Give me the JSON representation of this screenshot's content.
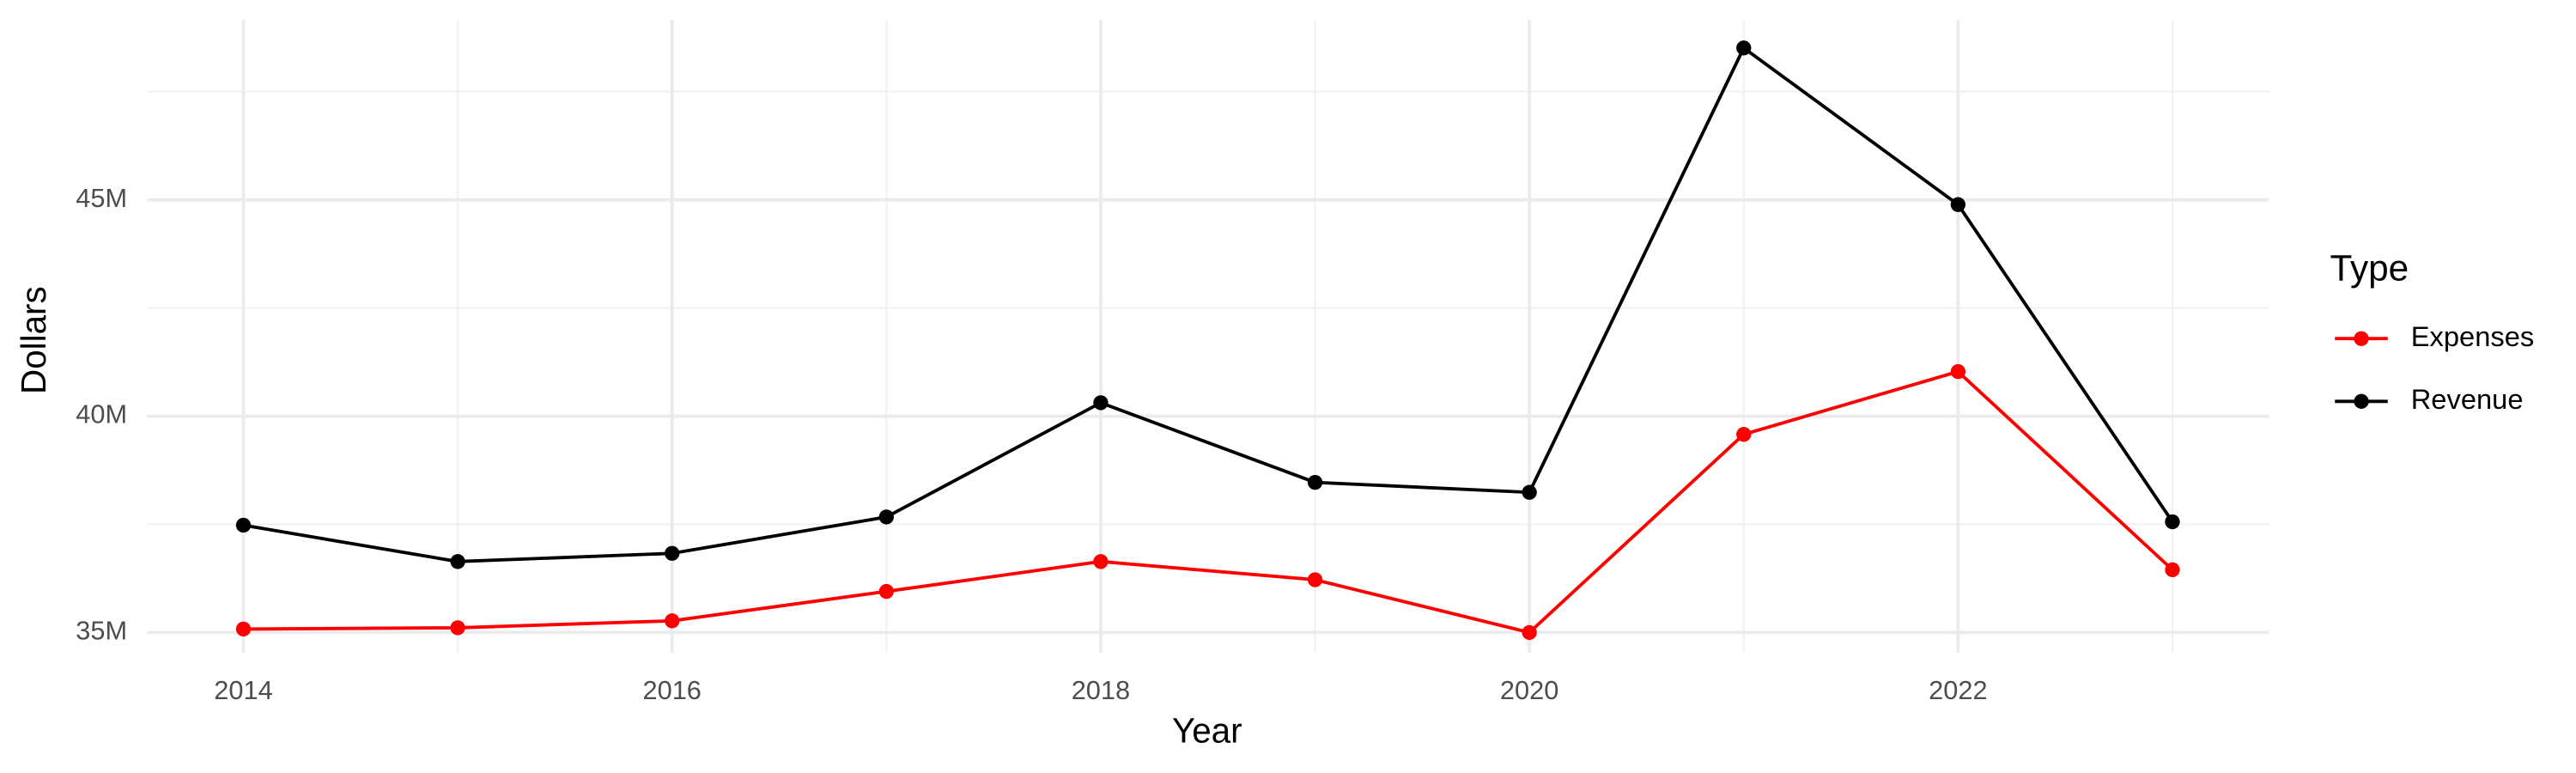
{
  "chart_data": {
    "type": "line",
    "x_label": "Year",
    "y_label": "Dollars",
    "x": [
      2014,
      2015,
      2016,
      2017,
      2018,
      2019,
      2020,
      2021,
      2022,
      2023
    ],
    "series": [
      {
        "name": "Expenses",
        "color": "#ff0000",
        "values": [
          35080000,
          35110000,
          35270000,
          35950000,
          36640000,
          36220000,
          35000000,
          39580000,
          41030000,
          36450000
        ]
      },
      {
        "name": "Revenue",
        "color": "#000000",
        "values": [
          37480000,
          36640000,
          36830000,
          37670000,
          40310000,
          38470000,
          38240000,
          48510000,
          44890000,
          37560000
        ]
      }
    ],
    "xlim": [
      2013.55,
      2023.45
    ],
    "xticks": [
      2014,
      2016,
      2018,
      2020,
      2022
    ],
    "ylim": [
      34540000,
      49160000
    ],
    "yticks": [
      {
        "value": 35000000,
        "label": "35M"
      },
      {
        "value": 40000000,
        "label": "40M"
      },
      {
        "value": 45000000,
        "label": "45M"
      }
    ],
    "grid": true,
    "legend_title": "Type",
    "legend_position": "right"
  }
}
